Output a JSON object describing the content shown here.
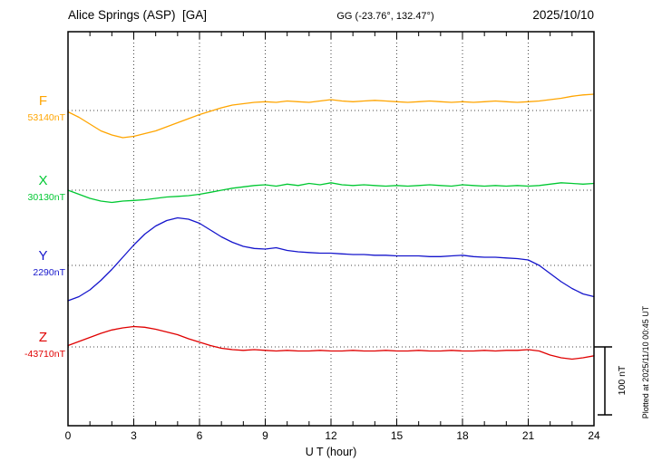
{
  "header": {
    "title": "Alice Springs (ASP)  [GA]",
    "coordinates": "GG (-23.76°, 132.47°)",
    "date": "2025/10/10"
  },
  "axis": {
    "xlabel": "U T (hour)"
  },
  "annotations": {
    "scale_label": "100 nT",
    "plotted_note": "Plotted at 2025/11/10 00:45 UT"
  },
  "chart_data": {
    "type": "line",
    "title": "Alice Springs (ASP) [GA] magnetogram 2025/10/10",
    "xlabel": "U T (hour)",
    "x_range": [
      0,
      24
    ],
    "x_ticks": [
      0,
      3,
      6,
      9,
      12,
      15,
      18,
      21,
      24
    ],
    "x_step_hours": 0.5,
    "grid": "dotted vertical lines every 3 hours; dotted horizontal baseline per channel",
    "scale_bar_nT": 100,
    "channels": [
      {
        "label": "F",
        "baseline_label": "53140nT",
        "baseline_nT": 53140,
        "color": "#FFA500",
        "offsets_nT": [
          -2,
          -10,
          -20,
          -30,
          -36,
          -40,
          -38,
          -34,
          -30,
          -24,
          -18,
          -12,
          -6,
          -1,
          4,
          8,
          10,
          12,
          13,
          12,
          14,
          13,
          12,
          14,
          16,
          14,
          13,
          14,
          15,
          14,
          13,
          12,
          13,
          14,
          13,
          12,
          13,
          12,
          13,
          14,
          13,
          12,
          13,
          14,
          16,
          18,
          21,
          23,
          24
        ]
      },
      {
        "label": "X",
        "baseline_label": "30130nT",
        "baseline_nT": 30130,
        "color": "#00C832",
        "offsets_nT": [
          0,
          -6,
          -12,
          -16,
          -18,
          -16,
          -15,
          -14,
          -12,
          -10,
          -9,
          -8,
          -6,
          -3,
          0,
          3,
          5,
          7,
          8,
          6,
          9,
          7,
          10,
          8,
          11,
          8,
          7,
          8,
          7,
          6,
          7,
          6,
          7,
          8,
          7,
          6,
          8,
          7,
          6,
          7,
          6,
          7,
          6,
          7,
          9,
          11,
          10,
          9,
          10
        ]
      },
      {
        "label": "Y",
        "baseline_label": "2290nT",
        "baseline_nT": 2290,
        "color": "#1515CC",
        "offsets_nT": [
          -52,
          -46,
          -36,
          -22,
          -6,
          12,
          30,
          46,
          58,
          66,
          70,
          68,
          62,
          52,
          42,
          34,
          28,
          25,
          24,
          26,
          22,
          20,
          19,
          18,
          18,
          17,
          16,
          16,
          15,
          15,
          14,
          14,
          14,
          13,
          13,
          14,
          15,
          13,
          12,
          12,
          11,
          10,
          8,
          0,
          -12,
          -24,
          -34,
          -42,
          -46
        ]
      },
      {
        "label": "Z",
        "baseline_label": "-43710nT",
        "baseline_nT": -43710,
        "color": "#E00000",
        "offsets_nT": [
          2,
          8,
          14,
          20,
          25,
          28,
          30,
          29,
          26,
          22,
          18,
          12,
          7,
          2,
          -2,
          -4,
          -5,
          -4,
          -5,
          -6,
          -5,
          -6,
          -6,
          -5,
          -6,
          -6,
          -5,
          -6,
          -6,
          -5,
          -6,
          -6,
          -5,
          -6,
          -6,
          -5,
          -6,
          -6,
          -5,
          -6,
          -5,
          -5,
          -4,
          -6,
          -12,
          -16,
          -18,
          -16,
          -13
        ]
      }
    ]
  }
}
